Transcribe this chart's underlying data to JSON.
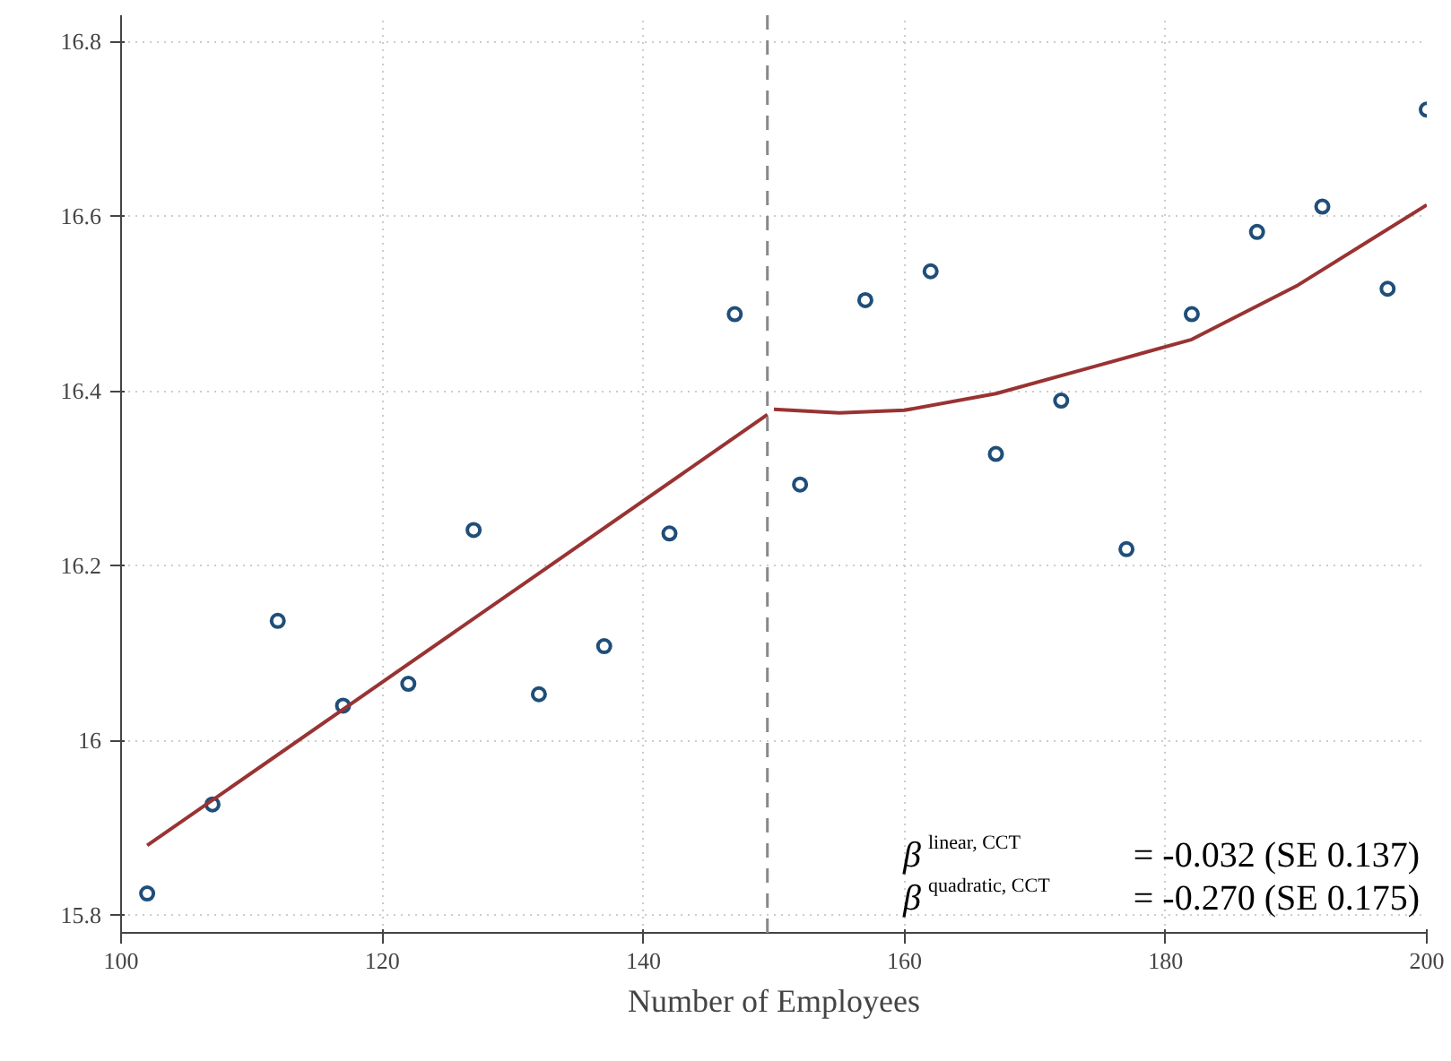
{
  "chart_data": {
    "type": "scatter",
    "xlabel": "Number of Employees",
    "xlim": [
      100,
      200
    ],
    "ylim": [
      15.78,
      16.83
    ],
    "xticks": [
      100,
      120,
      140,
      160,
      180,
      200
    ],
    "yticks": [
      15.8,
      {
        "value": 16.0,
        "label": "16"
      },
      16.2,
      16.4,
      16.6,
      16.8
    ],
    "grid": true,
    "marker": "circle",
    "series": [
      {
        "color": "#1f4e79",
        "x": [
          102,
          107,
          112,
          117,
          122,
          127,
          132,
          137,
          142,
          147,
          152,
          157,
          162,
          167,
          172,
          177,
          182,
          187,
          192,
          197,
          200
        ],
        "values": [
          15.825,
          15.927,
          16.137,
          16.04,
          16.065,
          16.241,
          16.053,
          16.108,
          16.237,
          16.488,
          16.293,
          16.504,
          16.537,
          16.328,
          16.389,
          16.219,
          16.488,
          16.582,
          16.611,
          16.517,
          16.722
        ]
      },
      {
        "type": "line",
        "color": "#993333",
        "marker": "none",
        "x": [
          102,
          149.5
        ],
        "values": [
          15.88,
          16.373
        ]
      },
      {
        "type": "line",
        "color": "#993333",
        "marker": "none",
        "x": [
          150,
          155,
          160,
          167,
          175,
          182,
          190,
          200
        ],
        "values": [
          16.379,
          16.375,
          16.378,
          16.397,
          16.43,
          16.459,
          16.52,
          16.613
        ]
      }
    ],
    "ref_lines": [
      {
        "axis": "x",
        "value": 149.5,
        "label": null,
        "color": "#888888",
        "line_style": "dashed"
      }
    ],
    "annotations": [
      "β$^{linear, CCT}$ = -0.032 (SE 0.137)",
      "β$^{quadratic, CCT}$ = -0.270 (SE 0.175)"
    ]
  }
}
